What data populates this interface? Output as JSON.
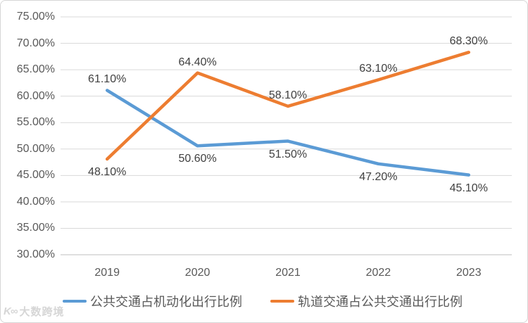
{
  "watermark": {
    "logo_glyph": "K∞",
    "text": "大数跨境"
  },
  "colors": {
    "gridline": "#d9d9d9",
    "axis_line": "#bfbfbf",
    "axis_text": "#595959",
    "data_label_text": "#404040",
    "background": "#ffffff",
    "frame_border": "#d6d6d6",
    "series_blue": "#5B9BD5",
    "series_orange": "#ED7D31"
  },
  "chart_data": {
    "type": "line",
    "title": "",
    "xlabel": "",
    "ylabel": "",
    "grid": true,
    "legend_position": "bottom",
    "ylim": [
      30,
      75
    ],
    "ytick_step": 5,
    "yticks": [
      {
        "value": 75,
        "label": "75.00%"
      },
      {
        "value": 70,
        "label": "70.00%"
      },
      {
        "value": 65,
        "label": "65.00%"
      },
      {
        "value": 60,
        "label": "60.00%"
      },
      {
        "value": 55,
        "label": "55.00%"
      },
      {
        "value": 50,
        "label": "50.00%"
      },
      {
        "value": 45,
        "label": "45.00%"
      },
      {
        "value": 40,
        "label": "40.00%"
      },
      {
        "value": 35,
        "label": "35.00%"
      },
      {
        "value": 30,
        "label": "30.00%"
      }
    ],
    "categories": [
      "2019",
      "2020",
      "2021",
      "2022",
      "2023"
    ],
    "series": [
      {
        "name": "公共交通占机动化出行比例",
        "color": "#5B9BD5",
        "values": [
          61.1,
          50.6,
          51.5,
          47.2,
          45.1
        ],
        "value_labels": [
          "61.10%",
          "50.60%",
          "51.50%",
          "47.20%",
          "45.10%"
        ],
        "label_side": [
          "above",
          "below",
          "below",
          "below",
          "below"
        ]
      },
      {
        "name": "轨道交通占公共交通出行比例",
        "color": "#ED7D31",
        "values": [
          48.1,
          64.4,
          58.1,
          63.1,
          68.3
        ],
        "value_labels": [
          "48.10%",
          "64.40%",
          "58.10%",
          "63.10%",
          "68.30%"
        ],
        "label_side": [
          "below",
          "above",
          "above",
          "above",
          "above"
        ]
      }
    ]
  }
}
